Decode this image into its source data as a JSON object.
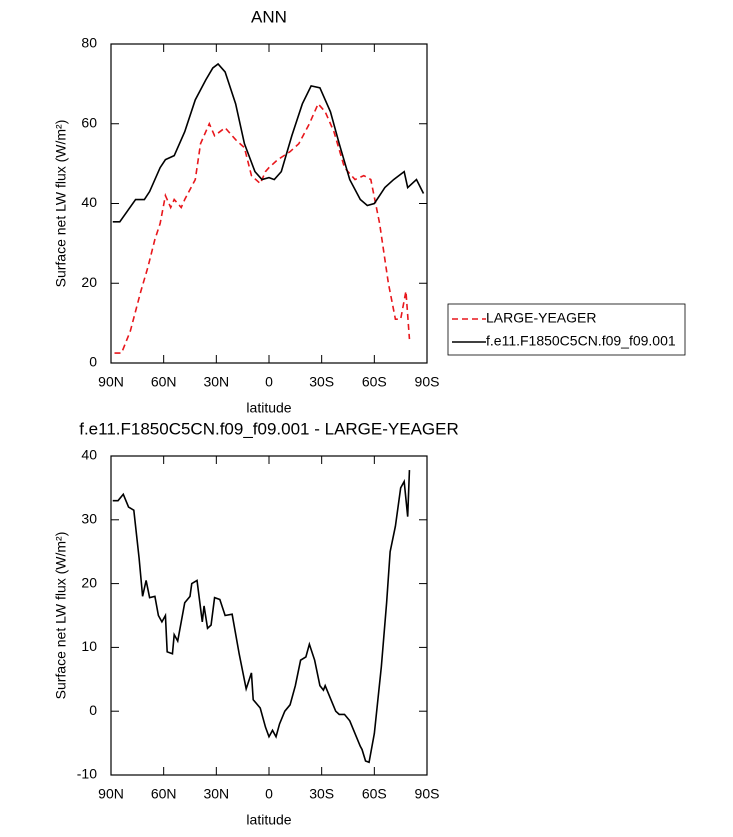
{
  "chart_data": [
    {
      "type": "line",
      "title": "ANN",
      "xlabel": "latitude",
      "ylabel": "Surface net LW flux (W/m²)",
      "xlim": [
        90,
        -90
      ],
      "xticks": [
        {
          "value": 90,
          "label": "90N"
        },
        {
          "value": 60,
          "label": "60N"
        },
        {
          "value": 30,
          "label": "30N"
        },
        0,
        {
          "value": -30,
          "label": "30S"
        },
        {
          "value": -60,
          "label": "60S"
        },
        {
          "value": -90,
          "label": "90S"
        }
      ],
      "ylim": [
        0,
        80
      ],
      "yticks": [
        0,
        20,
        40,
        60,
        80
      ],
      "legend": "right",
      "series": [
        {
          "name": "LARGE-YEAGER",
          "color": "#e8171c",
          "dash": true,
          "x": [
            88,
            84,
            79,
            73,
            69,
            65,
            62,
            59,
            56,
            54,
            50,
            48,
            42,
            39,
            34,
            31,
            25,
            19,
            14,
            10,
            5,
            2,
            0,
            -5,
            -12,
            -17,
            -23,
            -28,
            -32,
            -37,
            -43,
            -49,
            -54,
            -58,
            -63,
            -68,
            -72,
            -75,
            -78,
            -80
          ],
          "values": [
            2.5,
            2.5,
            8,
            18,
            24,
            31,
            35,
            42,
            39,
            41,
            39,
            41,
            46,
            55,
            60,
            57,
            59,
            56,
            54,
            47,
            45,
            48,
            49,
            51,
            53,
            55,
            60,
            65,
            63,
            58,
            49,
            46,
            47,
            46,
            35,
            20,
            11,
            11,
            18,
            6
          ]
        },
        {
          "name": "f.e11.F1850C5CN.f09_f09.001",
          "color": "#000000",
          "dash": false,
          "x": [
            89,
            85,
            76,
            71,
            68,
            62,
            59,
            54,
            48,
            42,
            36,
            32,
            29,
            25,
            19,
            14,
            8,
            4,
            0,
            -3,
            -7,
            -13,
            -19,
            -24,
            -29,
            -35,
            -40,
            -46,
            -52,
            -56,
            -60,
            -66,
            -71,
            -77,
            -79,
            -84,
            -88
          ],
          "values": [
            35.4,
            35.4,
            41,
            41,
            43,
            49,
            51,
            52,
            58,
            66,
            71,
            74,
            75,
            73,
            65,
            55,
            48,
            46,
            46.5,
            46,
            48,
            57,
            65,
            69.5,
            69,
            63,
            55,
            46,
            41,
            39.5,
            40,
            44,
            46,
            48,
            44,
            46,
            42.5
          ]
        }
      ]
    },
    {
      "type": "line",
      "title": "f.e11.F1850C5CN.f09_f09.001 - LARGE-YEAGER",
      "xlabel": "latitude",
      "ylabel": "Surface net LW flux (W/m²)",
      "xlim": [
        90,
        -90
      ],
      "xticks": [
        {
          "value": 90,
          "label": "90N"
        },
        {
          "value": 60,
          "label": "60N"
        },
        {
          "value": 30,
          "label": "30N"
        },
        0,
        {
          "value": -30,
          "label": "30S"
        },
        {
          "value": -60,
          "label": "60S"
        },
        {
          "value": -90,
          "label": "90S"
        }
      ],
      "ylim": [
        -10,
        40
      ],
      "yticks": [
        -10,
        0,
        10,
        20,
        30,
        40
      ],
      "series": [
        {
          "color": "#000000",
          "dash": false,
          "x": [
            89,
            86,
            83,
            80,
            77,
            74,
            72,
            70,
            68,
            65,
            63,
            61,
            59,
            58,
            55,
            54,
            52,
            48,
            45,
            44,
            41,
            38,
            37,
            35,
            33,
            31,
            28,
            25,
            21,
            17,
            13,
            10,
            9,
            5,
            2,
            0,
            -2,
            -4,
            -6,
            -9,
            -12,
            -15,
            -18,
            -21,
            -23,
            -26,
            -29,
            -31,
            -32,
            -35,
            -38,
            -40,
            -43,
            -46,
            -49,
            -52,
            -53,
            -55,
            -57,
            -60,
            -64,
            -67,
            -69,
            -72,
            -75,
            -77,
            -79,
            -80
          ],
          "values": [
            33,
            33,
            34,
            32,
            31.5,
            24,
            18,
            20.5,
            17.8,
            18,
            15,
            14,
            15,
            9.3,
            9,
            12,
            11,
            17,
            18,
            20,
            20.5,
            14,
            16.5,
            13,
            13.5,
            17.8,
            17.5,
            15,
            15.2,
            9,
            3.5,
            6,
            1.8,
            0.5,
            -2.5,
            -4,
            -3,
            -4,
            -2,
            0,
            1,
            4,
            8,
            8.5,
            10.5,
            8,
            4,
            3.3,
            4,
            2,
            0,
            -0.5,
            -0.5,
            -1.5,
            -3.5,
            -5.5,
            -6,
            -7.8,
            -8,
            -3.5,
            7,
            17,
            25,
            29,
            35,
            36,
            30.5,
            37.8
          ]
        }
      ]
    }
  ]
}
